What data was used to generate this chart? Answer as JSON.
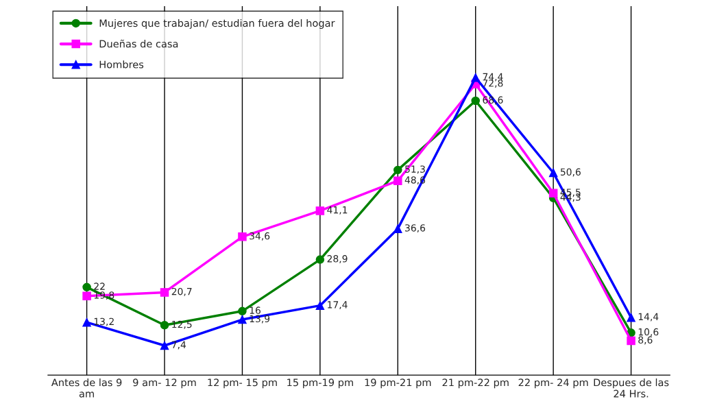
{
  "chart_data": {
    "type": "line",
    "categories": [
      "Antes de las 9\nam",
      "9 am- 12 pm",
      "12 pm- 15 pm",
      "15 pm-19 pm",
      "19 pm-21 pm",
      "21 pm-22 pm",
      "22 pm- 24 pm",
      "Despues de las\n24 Hrs."
    ],
    "series": [
      {
        "name": "Mujeres que trabajan/ estudian fuera del hogar",
        "color": "#008000",
        "marker": "circle",
        "values": [
          22,
          12.5,
          16,
          28.9,
          51.3,
          68.6,
          44.3,
          10.6
        ],
        "value_labels": [
          "22",
          "12,5",
          "16",
          "28,9",
          "51,3",
          "68,6",
          "44,3",
          "10,6"
        ]
      },
      {
        "name": "Dueñas de casa",
        "color": "#ff00ff",
        "marker": "square",
        "values": [
          19.8,
          20.7,
          34.6,
          41.1,
          48.6,
          72.8,
          45.5,
          8.6
        ],
        "value_labels": [
          "19,8",
          "20,7",
          "34,6",
          "41,1",
          "48,6",
          "72,8",
          "45,5",
          "8,6"
        ]
      },
      {
        "name": "Hombres",
        "color": "#0000ff",
        "marker": "triangle",
        "values": [
          13.2,
          7.4,
          13.9,
          17.4,
          36.6,
          74.4,
          50.6,
          14.4
        ],
        "value_labels": [
          "13,2",
          "7,4",
          "13,9",
          "17,4",
          "36,6",
          "74,4",
          "50,6",
          "14,4"
        ]
      }
    ],
    "grid": "x",
    "legend": "top left",
    "tick_labels": "x"
  }
}
